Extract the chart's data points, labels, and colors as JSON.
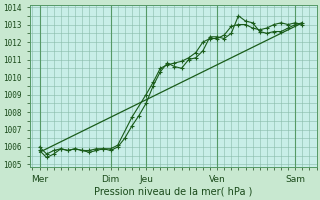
{
  "xlabel": "Pression niveau de la mer( hPa )",
  "bg_color": "#c8e8d0",
  "plot_bg_color": "#c8eee8",
  "grid_color": "#88bbaa",
  "line_color": "#1a5c1a",
  "dark_line_color": "#1a4a1a",
  "ylim": [
    1005,
    1014
  ],
  "yticks": [
    1005,
    1006,
    1007,
    1008,
    1009,
    1010,
    1011,
    1012,
    1013,
    1014
  ],
  "x_day_labels": [
    "Mer",
    "Dim",
    "Jeu",
    "Ven",
    "Sam"
  ],
  "x_day_positions": [
    0.5,
    5.5,
    8.0,
    13.0,
    18.5
  ],
  "x_vlines": [
    0.5,
    5.5,
    8.0,
    13.0,
    18.5
  ],
  "xlim": [
    -0.2,
    19.8
  ],
  "series1_x": [
    0.5,
    1.0,
    1.5,
    2.0,
    2.5,
    3.0,
    3.5,
    4.0,
    4.5,
    5.0,
    5.5,
    6.0,
    6.5,
    7.0,
    7.5,
    8.0,
    8.5,
    9.0,
    9.5,
    10.0,
    10.5,
    11.0,
    11.5,
    12.0,
    12.5,
    13.0,
    13.5,
    14.0,
    14.5,
    15.0,
    15.5,
    16.0,
    16.5,
    17.0,
    17.5,
    18.0,
    18.5,
    19.0
  ],
  "series1_y": [
    1006.0,
    1005.6,
    1005.8,
    1005.9,
    1005.8,
    1005.9,
    1005.8,
    1005.7,
    1005.8,
    1005.9,
    1005.8,
    1006.0,
    1006.5,
    1007.2,
    1007.8,
    1008.5,
    1009.5,
    1010.3,
    1010.8,
    1010.6,
    1010.5,
    1011.0,
    1011.1,
    1011.5,
    1012.3,
    1012.3,
    1012.2,
    1012.5,
    1013.5,
    1013.2,
    1013.1,
    1012.6,
    1012.5,
    1012.6,
    1012.6,
    1012.8,
    1013.0,
    1013.1
  ],
  "series2_x": [
    0.5,
    1.0,
    1.5,
    2.0,
    2.5,
    3.0,
    3.5,
    4.0,
    4.5,
    5.0,
    5.5,
    6.0,
    7.0,
    8.0,
    8.5,
    9.0,
    9.5,
    10.0,
    10.5,
    11.0,
    11.5,
    12.0,
    12.5,
    13.0,
    13.5,
    14.0,
    14.5,
    15.0,
    15.5,
    16.0,
    16.5,
    17.0,
    17.5,
    18.0,
    18.5,
    19.0
  ],
  "series2_y": [
    1005.8,
    1005.4,
    1005.6,
    1005.9,
    1005.8,
    1005.9,
    1005.8,
    1005.8,
    1005.9,
    1005.9,
    1005.9,
    1006.1,
    1007.7,
    1009.0,
    1009.7,
    1010.5,
    1010.7,
    1010.8,
    1010.9,
    1011.1,
    1011.4,
    1012.0,
    1012.2,
    1012.2,
    1012.4,
    1012.9,
    1013.0,
    1013.0,
    1012.8,
    1012.7,
    1012.8,
    1013.0,
    1013.1,
    1013.0,
    1013.1,
    1013.0
  ],
  "trend_x": [
    0.5,
    19.0
  ],
  "trend_y": [
    1005.7,
    1013.1
  ]
}
